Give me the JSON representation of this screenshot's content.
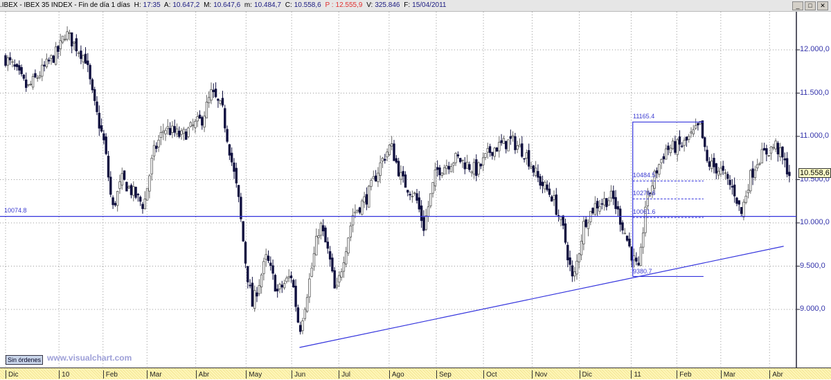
{
  "header": {
    "symbol": ".IBEX - IBEX 35 INDEX - Fin de día 1 días",
    "h_label": "H:",
    "h": "17:35",
    "a_label": "A:",
    "a": "10.647,2",
    "m_label": "M:",
    "m": "10.647,6",
    "min_label": "m:",
    "min": "10.484,7",
    "c_label": "C:",
    "c": "10.558,6",
    "p_label": "P :",
    "p": "12.555,9",
    "v_label": "V:",
    "v": "325.846",
    "f_label": "F:",
    "f": "15/04/2011"
  },
  "window_buttons": {
    "minimize": "_",
    "maximize": "□",
    "close": "✕"
  },
  "footer": {
    "orders_button": "Sin órdenes",
    "watermark": "www.visualchart.com"
  },
  "colors": {
    "line": "#3333dd",
    "bear": "#101040",
    "bull_outline": "#555",
    "price_tag": "#ffffc8"
  },
  "chart_data": {
    "type": "candlestick",
    "title": ".IBEX - IBEX 35 INDEX",
    "ylim": [
      8400,
      12350
    ],
    "y_ticks": [
      "12.000,0",
      "11.500,0",
      "11.000,0",
      "10.500,0",
      "10.000,0",
      "9.500,0",
      "9.000,0"
    ],
    "y_tick_values": [
      12000,
      11500,
      11000,
      10500,
      10000,
      9500,
      9000
    ],
    "x_ticks": [
      "Dic",
      "10",
      "Feb",
      "Mar",
      "Abr",
      "May",
      "Jun",
      "Jul",
      "Ago",
      "Sep",
      "Oct",
      "Nov",
      "Dic",
      "11",
      "Feb",
      "Mar",
      "Abr"
    ],
    "x_tick_dates": [
      "2009-12-01",
      "2010-01-04",
      "2010-02-01",
      "2010-03-01",
      "2010-04-01",
      "2010-05-03",
      "2010-06-01",
      "2010-07-01",
      "2010-08-02",
      "2010-09-01",
      "2010-10-01",
      "2010-11-01",
      "2010-12-01",
      "2011-01-03",
      "2011-02-01",
      "2011-03-01",
      "2011-04-01"
    ],
    "grid": true,
    "close_path": [
      [
        "2009-12-01",
        11900
      ],
      [
        "2009-12-06",
        11800
      ],
      [
        "2009-12-15",
        11550
      ],
      [
        "2010-01-04",
        12000
      ],
      [
        "2010-01-08",
        12200
      ],
      [
        "2010-01-21",
        11900
      ],
      [
        "2010-01-26",
        11400
      ],
      [
        "2010-02-02",
        10900
      ],
      [
        "2010-02-07",
        10150
      ],
      [
        "2010-02-13",
        10500
      ],
      [
        "2010-02-27",
        10200
      ],
      [
        "2010-03-05",
        10800
      ],
      [
        "2010-03-12",
        11100
      ],
      [
        "2010-03-23",
        11000
      ],
      [
        "2010-04-05",
        11200
      ],
      [
        "2010-04-11",
        11500
      ],
      [
        "2010-04-18",
        11300
      ],
      [
        "2010-04-24",
        10700
      ],
      [
        "2010-04-28",
        10300
      ],
      [
        "2010-05-03",
        9500
      ],
      [
        "2010-05-07",
        9050
      ],
      [
        "2010-05-16",
        9600
      ],
      [
        "2010-05-23",
        9200
      ],
      [
        "2010-06-01",
        9400
      ],
      [
        "2010-06-06",
        8750
      ],
      [
        "2010-06-12",
        9300
      ],
      [
        "2010-06-19",
        10000
      ],
      [
        "2010-06-25",
        9600
      ],
      [
        "2010-06-29",
        9150
      ],
      [
        "2010-07-04",
        9600
      ],
      [
        "2010-07-10",
        10100
      ],
      [
        "2010-07-19",
        10300
      ],
      [
        "2010-07-28",
        10700
      ],
      [
        "2010-08-03",
        10900
      ],
      [
        "2010-08-10",
        10500
      ],
      [
        "2010-08-19",
        10300
      ],
      [
        "2010-08-24",
        9950
      ],
      [
        "2010-09-01",
        10600
      ],
      [
        "2010-09-14",
        10750
      ],
      [
        "2010-09-27",
        10600
      ],
      [
        "2010-10-06",
        10850
      ],
      [
        "2010-10-19",
        10950
      ],
      [
        "2010-10-28",
        10800
      ],
      [
        "2010-11-05",
        10500
      ],
      [
        "2010-11-14",
        10300
      ],
      [
        "2010-11-21",
        9900
      ],
      [
        "2010-11-27",
        9300
      ],
      [
        "2010-12-04",
        10000
      ],
      [
        "2010-12-11",
        10200
      ],
      [
        "2010-12-22",
        10300
      ],
      [
        "2010-12-28",
        10000
      ],
      [
        "2011-01-04",
        9600
      ],
      [
        "2011-01-08",
        9420
      ],
      [
        "2011-01-12",
        10200
      ],
      [
        "2011-01-19",
        10600
      ],
      [
        "2011-01-25",
        10850
      ],
      [
        "2011-02-05",
        10900
      ],
      [
        "2011-02-16",
        11120
      ],
      [
        "2011-02-20",
        10700
      ],
      [
        "2011-03-01",
        10600
      ],
      [
        "2011-03-10",
        10350
      ],
      [
        "2011-03-14",
        10100
      ],
      [
        "2011-03-19",
        10500
      ],
      [
        "2011-03-25",
        10750
      ],
      [
        "2011-04-05",
        10900
      ],
      [
        "2011-04-14",
        10558.6
      ]
    ],
    "last_price": "10.558,6",
    "support_line": {
      "label": "10074.8",
      "value": 10074.8
    },
    "trend_line": {
      "start": [
        "2010-06-06",
        8560
      ],
      "end": [
        "2011-04-10",
        9730
      ]
    },
    "fibonacci": {
      "start": "2011-01-04",
      "end": "2011-02-18",
      "high": 11165.4,
      "high_label": "11165.4",
      "low": 9380.7,
      "low_label": "9380.7",
      "levels": [
        {
          "value": 10484.5,
          "label": "10484.5"
        },
        {
          "value": 10276.6,
          "label": "10276.6"
        },
        {
          "value": 10061.6,
          "label": "10061.6"
        }
      ]
    }
  }
}
